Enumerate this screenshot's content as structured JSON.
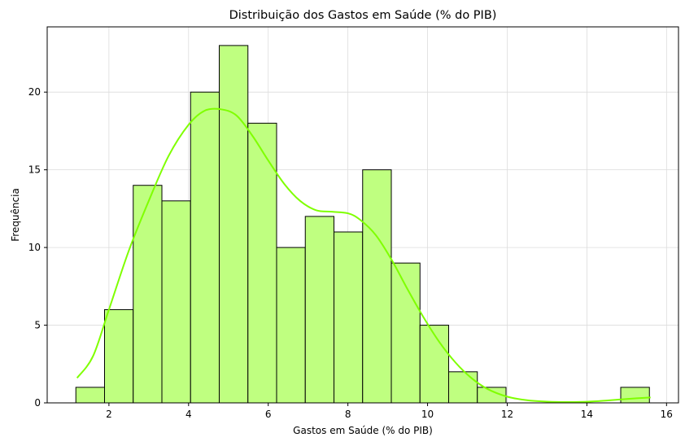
{
  "chart_data": {
    "type": "bar",
    "title": "Distribuição dos Gastos em Saúde (% do PIB)",
    "xlabel": "Gastos em Saúde (% do PIB)",
    "ylabel": "Frequência",
    "xlim": [
      0.45,
      16.3
    ],
    "ylim": [
      0,
      24.2
    ],
    "xticks": [
      2,
      4,
      6,
      8,
      10,
      12,
      14,
      16
    ],
    "yticks": [
      0,
      5,
      10,
      15,
      20
    ],
    "grid": true,
    "bar_color": "#bfff80",
    "bar_edge_color": "#000000",
    "kde_color": "#7fff00",
    "bins": [
      {
        "x0": 1.17,
        "x1": 1.89,
        "count": 1
      },
      {
        "x0": 1.89,
        "x1": 2.61,
        "count": 6
      },
      {
        "x0": 2.61,
        "x1": 3.33,
        "count": 14
      },
      {
        "x0": 3.33,
        "x1": 4.05,
        "count": 13
      },
      {
        "x0": 4.05,
        "x1": 4.77,
        "count": 20
      },
      {
        "x0": 4.77,
        "x1": 5.49,
        "count": 23
      },
      {
        "x0": 5.49,
        "x1": 6.21,
        "count": 18
      },
      {
        "x0": 6.21,
        "x1": 6.93,
        "count": 10
      },
      {
        "x0": 6.93,
        "x1": 7.65,
        "count": 12
      },
      {
        "x0": 7.65,
        "x1": 8.37,
        "count": 11
      },
      {
        "x0": 8.37,
        "x1": 9.09,
        "count": 15
      },
      {
        "x0": 9.09,
        "x1": 9.81,
        "count": 9
      },
      {
        "x0": 9.81,
        "x1": 10.53,
        "count": 5
      },
      {
        "x0": 10.53,
        "x1": 11.25,
        "count": 2
      },
      {
        "x0": 11.25,
        "x1": 11.97,
        "count": 1
      },
      {
        "x0": 11.97,
        "x1": 12.69,
        "count": 0
      },
      {
        "x0": 12.69,
        "x1": 13.41,
        "count": 0
      },
      {
        "x0": 13.41,
        "x1": 14.13,
        "count": 0
      },
      {
        "x0": 14.13,
        "x1": 14.85,
        "count": 0
      },
      {
        "x0": 14.85,
        "x1": 15.57,
        "count": 1
      }
    ],
    "kde": {
      "x": [
        1.2,
        1.6,
        2.0,
        2.5,
        3.0,
        3.5,
        4.0,
        4.4,
        4.8,
        5.2,
        5.6,
        6.0,
        6.4,
        6.8,
        7.2,
        7.6,
        8.0,
        8.3,
        8.7,
        9.1,
        9.5,
        9.9,
        10.3,
        10.7,
        11.1,
        11.5,
        12.0,
        12.5,
        13.0,
        13.5,
        14.0,
        14.5,
        15.0,
        15.6
      ],
      "y": [
        1.6,
        3.0,
        6.0,
        9.8,
        13.0,
        15.9,
        17.9,
        18.8,
        18.9,
        18.5,
        17.2,
        15.6,
        14.1,
        13.0,
        12.4,
        12.3,
        12.2,
        11.8,
        10.8,
        9.2,
        7.3,
        5.5,
        3.9,
        2.6,
        1.6,
        0.9,
        0.4,
        0.17,
        0.08,
        0.05,
        0.07,
        0.15,
        0.25,
        0.35
      ]
    }
  }
}
